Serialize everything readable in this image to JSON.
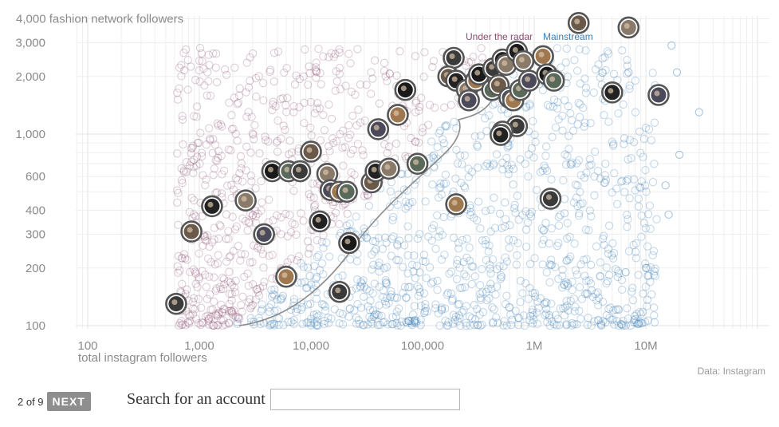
{
  "chart_data": {
    "type": "scatter",
    "title": "",
    "xlabel": "total instagram followers",
    "ylabel": "fashion network followers",
    "x_scale": "log",
    "y_scale": "log",
    "xlim": [
      60,
      100000000
    ],
    "ylim": [
      88,
      4300
    ],
    "x_ticks": [
      {
        "value": 100,
        "label": "100"
      },
      {
        "value": 1000,
        "label": "1,000"
      },
      {
        "value": 10000,
        "label": "10,000"
      },
      {
        "value": 100000,
        "label": "100,000"
      },
      {
        "value": 1000000,
        "label": "1M"
      },
      {
        "value": 10000000,
        "label": "10M"
      }
    ],
    "y_ticks": [
      {
        "value": 100,
        "label": "100"
      },
      {
        "value": 200,
        "label": "200"
      },
      {
        "value": 300,
        "label": "300"
      },
      {
        "value": 400,
        "label": "400"
      },
      {
        "value": 600,
        "label": "600"
      },
      {
        "value": 1000,
        "label": "1,000"
      },
      {
        "value": 2000,
        "label": "2,000"
      },
      {
        "value": 3000,
        "label": "3,000"
      },
      {
        "value": 4000,
        "label": "4,000"
      }
    ],
    "y_top_tick_suffix": " fashion network followers",
    "grid": true,
    "legend_position": "top",
    "series": [
      {
        "name": "Under the radar",
        "color": "#8a4a6e"
      },
      {
        "name": "Mainstream",
        "color": "#3d7fb5"
      }
    ],
    "highlighted_accounts": [
      [
        620,
        130
      ],
      [
        850,
        310
      ],
      [
        1300,
        420
      ],
      [
        2600,
        450
      ],
      [
        3800,
        300
      ],
      [
        6000,
        180
      ],
      [
        4500,
        640
      ],
      [
        6300,
        640
      ],
      [
        8000,
        640
      ],
      [
        10000,
        810
      ],
      [
        12000,
        350
      ],
      [
        14000,
        620
      ],
      [
        15000,
        510
      ],
      [
        18000,
        500
      ],
      [
        22000,
        270
      ],
      [
        21000,
        500
      ],
      [
        18000,
        150
      ],
      [
        35000,
        560
      ],
      [
        38000,
        640
      ],
      [
        50000,
        660
      ],
      [
        40000,
        1060
      ],
      [
        60000,
        1260
      ],
      [
        70000,
        1700
      ],
      [
        90000,
        700
      ],
      [
        190000,
        2500
      ],
      [
        170000,
        2000
      ],
      [
        200000,
        1900
      ],
      [
        250000,
        1700
      ],
      [
        260000,
        1500
      ],
      [
        300000,
        1900
      ],
      [
        320000,
        2050
      ],
      [
        420000,
        1700
      ],
      [
        430000,
        2200
      ],
      [
        480000,
        1800
      ],
      [
        520000,
        2450
      ],
      [
        560000,
        2300
      ],
      [
        600000,
        1550
      ],
      [
        650000,
        1500
      ],
      [
        700000,
        2700
      ],
      [
        750000,
        1700
      ],
      [
        700000,
        1100
      ],
      [
        520000,
        1030
      ],
      [
        500000,
        990
      ],
      [
        800000,
        2400
      ],
      [
        900000,
        1900
      ],
      [
        1200000,
        2550
      ],
      [
        1300000,
        2050
      ],
      [
        1500000,
        1900
      ],
      [
        1400000,
        460
      ],
      [
        2500000,
        3800
      ],
      [
        5000000,
        1650
      ],
      [
        7000000,
        3600
      ],
      [
        13000000,
        1600
      ],
      [
        200000,
        430
      ]
    ],
    "faint_outliers": [
      [
        17000000,
        2900
      ],
      [
        19000000,
        2100
      ],
      [
        30000000,
        1300
      ],
      [
        20000000,
        780
      ],
      [
        15000000,
        540
      ],
      [
        16000000,
        380
      ],
      [
        10000000,
        200
      ],
      [
        6600000,
        190
      ],
      [
        7000000,
        2100
      ]
    ]
  },
  "source_label": "Data: Instagram",
  "pager": {
    "count_label": "2 of 9",
    "next_label": "NEXT"
  },
  "search": {
    "label": "Search for an account",
    "value": "",
    "placeholder": ""
  }
}
